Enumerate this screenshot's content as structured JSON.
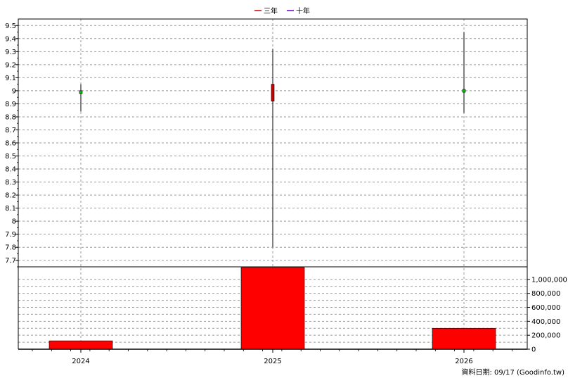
{
  "legend": [
    {
      "label": "三年",
      "color": "#cc0000"
    },
    {
      "label": "十年",
      "color": "#6600cc"
    }
  ],
  "footer": {
    "date_label": "資料日期: 09/17  (Goodinfo.tw)"
  },
  "chart_data": [
    {
      "type": "candlestick",
      "title": "",
      "categories": [
        "2024",
        "2025",
        "2026"
      ],
      "y_ticks": [
        "7.7",
        "7.8",
        "7.9",
        "8",
        "8.1",
        "8.2",
        "8.3",
        "8.4",
        "8.5",
        "8.6",
        "8.7",
        "8.8",
        "8.9",
        "9",
        "9.1",
        "9.2",
        "9.3",
        "9.4",
        "9.5"
      ],
      "ylim": [
        7.65,
        9.55
      ],
      "grid": true,
      "legend_position": "top-center",
      "series": [
        {
          "category": "2024",
          "open": 8.98,
          "close": 9.0,
          "high": 9.05,
          "low": 8.84,
          "color": "#00cc00"
        },
        {
          "category": "2025",
          "open": 9.05,
          "close": 8.92,
          "high": 9.32,
          "low": 7.8,
          "color": "#cc0000"
        },
        {
          "category": "2026",
          "open": 8.99,
          "close": 9.01,
          "high": 9.45,
          "low": 8.83,
          "color": "#00cc00"
        }
      ]
    },
    {
      "type": "bar",
      "title": "",
      "categories": [
        "2024",
        "2025",
        "2026"
      ],
      "values": [
        120000,
        1170000,
        300000
      ],
      "y_ticks": [
        "0",
        "200,000",
        "400,000",
        "600,000",
        "800,000",
        "1,000,000"
      ],
      "ylim": [
        0,
        1180000
      ],
      "bar_color": "#ff0000",
      "grid": true
    }
  ]
}
